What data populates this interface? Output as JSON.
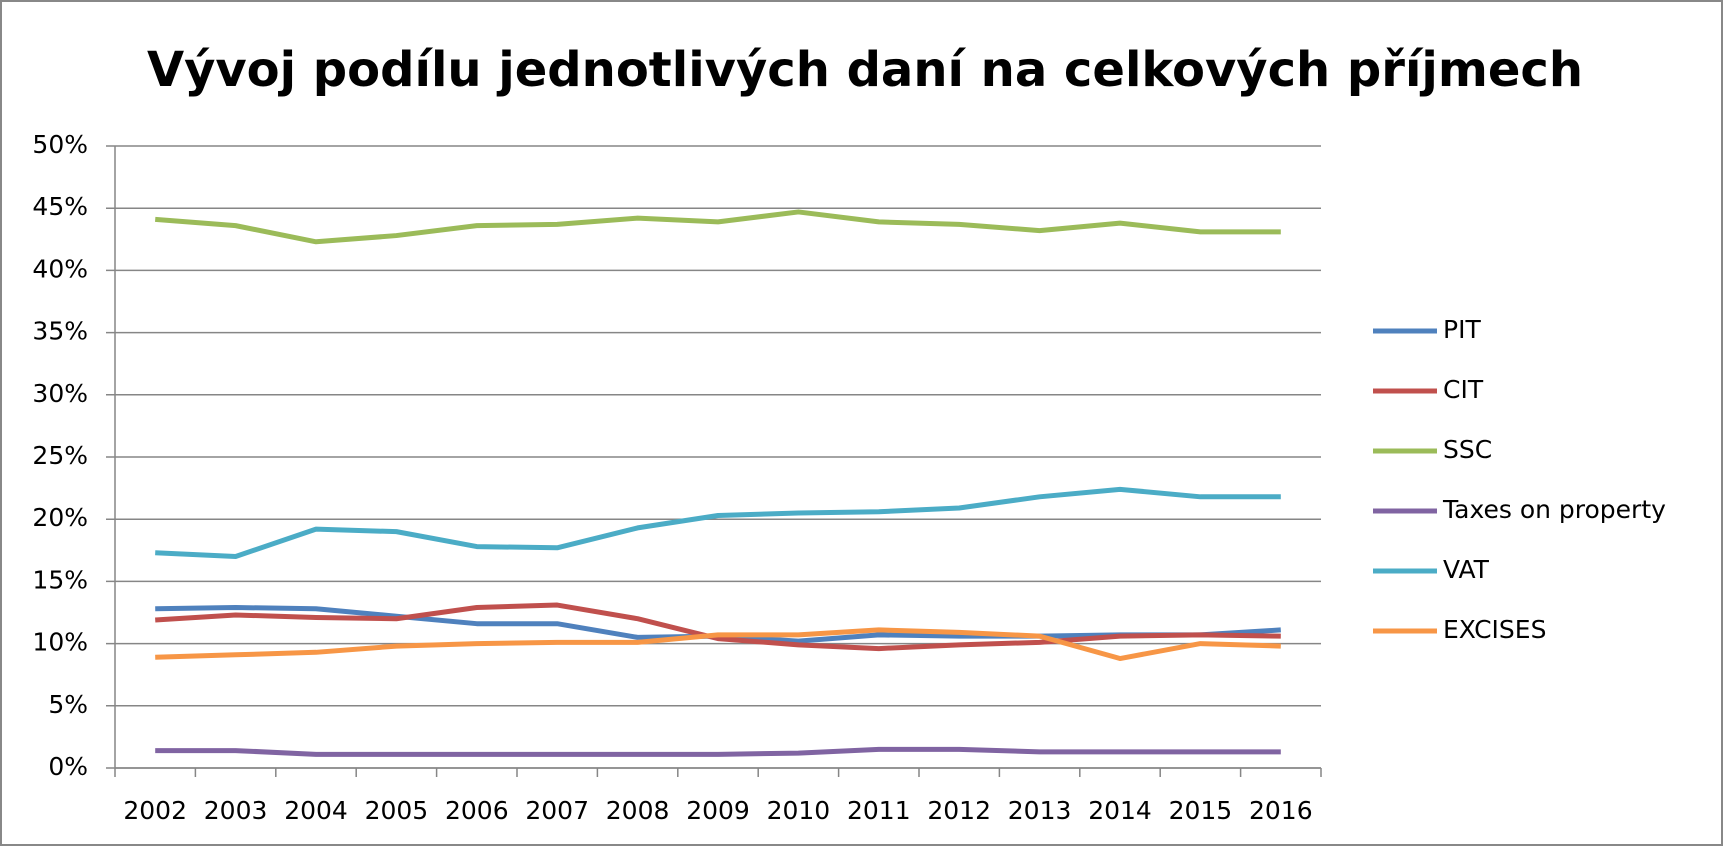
{
  "chart_data": {
    "type": "line",
    "title": "Vývoj podílu jednotlivých daní na celkových příjmech",
    "categories": [
      "2002",
      "2003",
      "2004",
      "2005",
      "2006",
      "2007",
      "2008",
      "2009",
      "2010",
      "2011",
      "2012",
      "2013",
      "2014",
      "2015",
      "2016"
    ],
    "series": [
      {
        "name": "PIT",
        "color": "#4f81bd",
        "values": [
          12.8,
          12.9,
          12.8,
          12.2,
          11.6,
          11.6,
          10.5,
          10.6,
          10.2,
          10.7,
          10.6,
          10.6,
          10.7,
          10.7,
          11.1
        ]
      },
      {
        "name": "CIT",
        "color": "#c0504d",
        "values": [
          11.9,
          12.3,
          12.1,
          12.0,
          12.9,
          13.1,
          12.0,
          10.4,
          9.9,
          9.6,
          9.9,
          10.1,
          10.6,
          10.7,
          10.6
        ]
      },
      {
        "name": "SSC",
        "color": "#9bbb59",
        "values": [
          44.1,
          43.6,
          42.3,
          42.8,
          43.6,
          43.7,
          44.2,
          43.9,
          44.7,
          43.9,
          43.7,
          43.2,
          43.8,
          43.1,
          43.1
        ]
      },
      {
        "name": "Taxes on property",
        "color": "#8064a2",
        "values": [
          1.4,
          1.4,
          1.1,
          1.1,
          1.1,
          1.1,
          1.1,
          1.1,
          1.2,
          1.5,
          1.5,
          1.3,
          1.3,
          1.3,
          1.3
        ]
      },
      {
        "name": "VAT",
        "color": "#4bacc6",
        "values": [
          17.3,
          17.0,
          19.2,
          19.0,
          17.8,
          17.7,
          19.3,
          20.3,
          20.5,
          20.6,
          20.9,
          21.8,
          22.4,
          21.8,
          21.8
        ]
      },
      {
        "name": "EXCISES",
        "color": "#f79646",
        "values": [
          8.9,
          9.1,
          9.3,
          9.8,
          10.0,
          10.1,
          10.1,
          10.7,
          10.7,
          11.1,
          10.9,
          10.6,
          8.8,
          10.0,
          9.8
        ]
      }
    ],
    "ylim": [
      0,
      50
    ],
    "yticks": [
      {
        "value": 0,
        "label": "0%"
      },
      {
        "value": 5,
        "label": "5%"
      },
      {
        "value": 10,
        "label": "10%"
      },
      {
        "value": 15,
        "label": "15%"
      },
      {
        "value": 20,
        "label": "20%"
      },
      {
        "value": 25,
        "label": "25%"
      },
      {
        "value": 30,
        "label": "30%"
      },
      {
        "value": 35,
        "label": "35%"
      },
      {
        "value": 40,
        "label": "40%"
      },
      {
        "value": 45,
        "label": "45%"
      },
      {
        "value": 50,
        "label": "50%"
      }
    ],
    "grid": true,
    "legend": "right"
  }
}
